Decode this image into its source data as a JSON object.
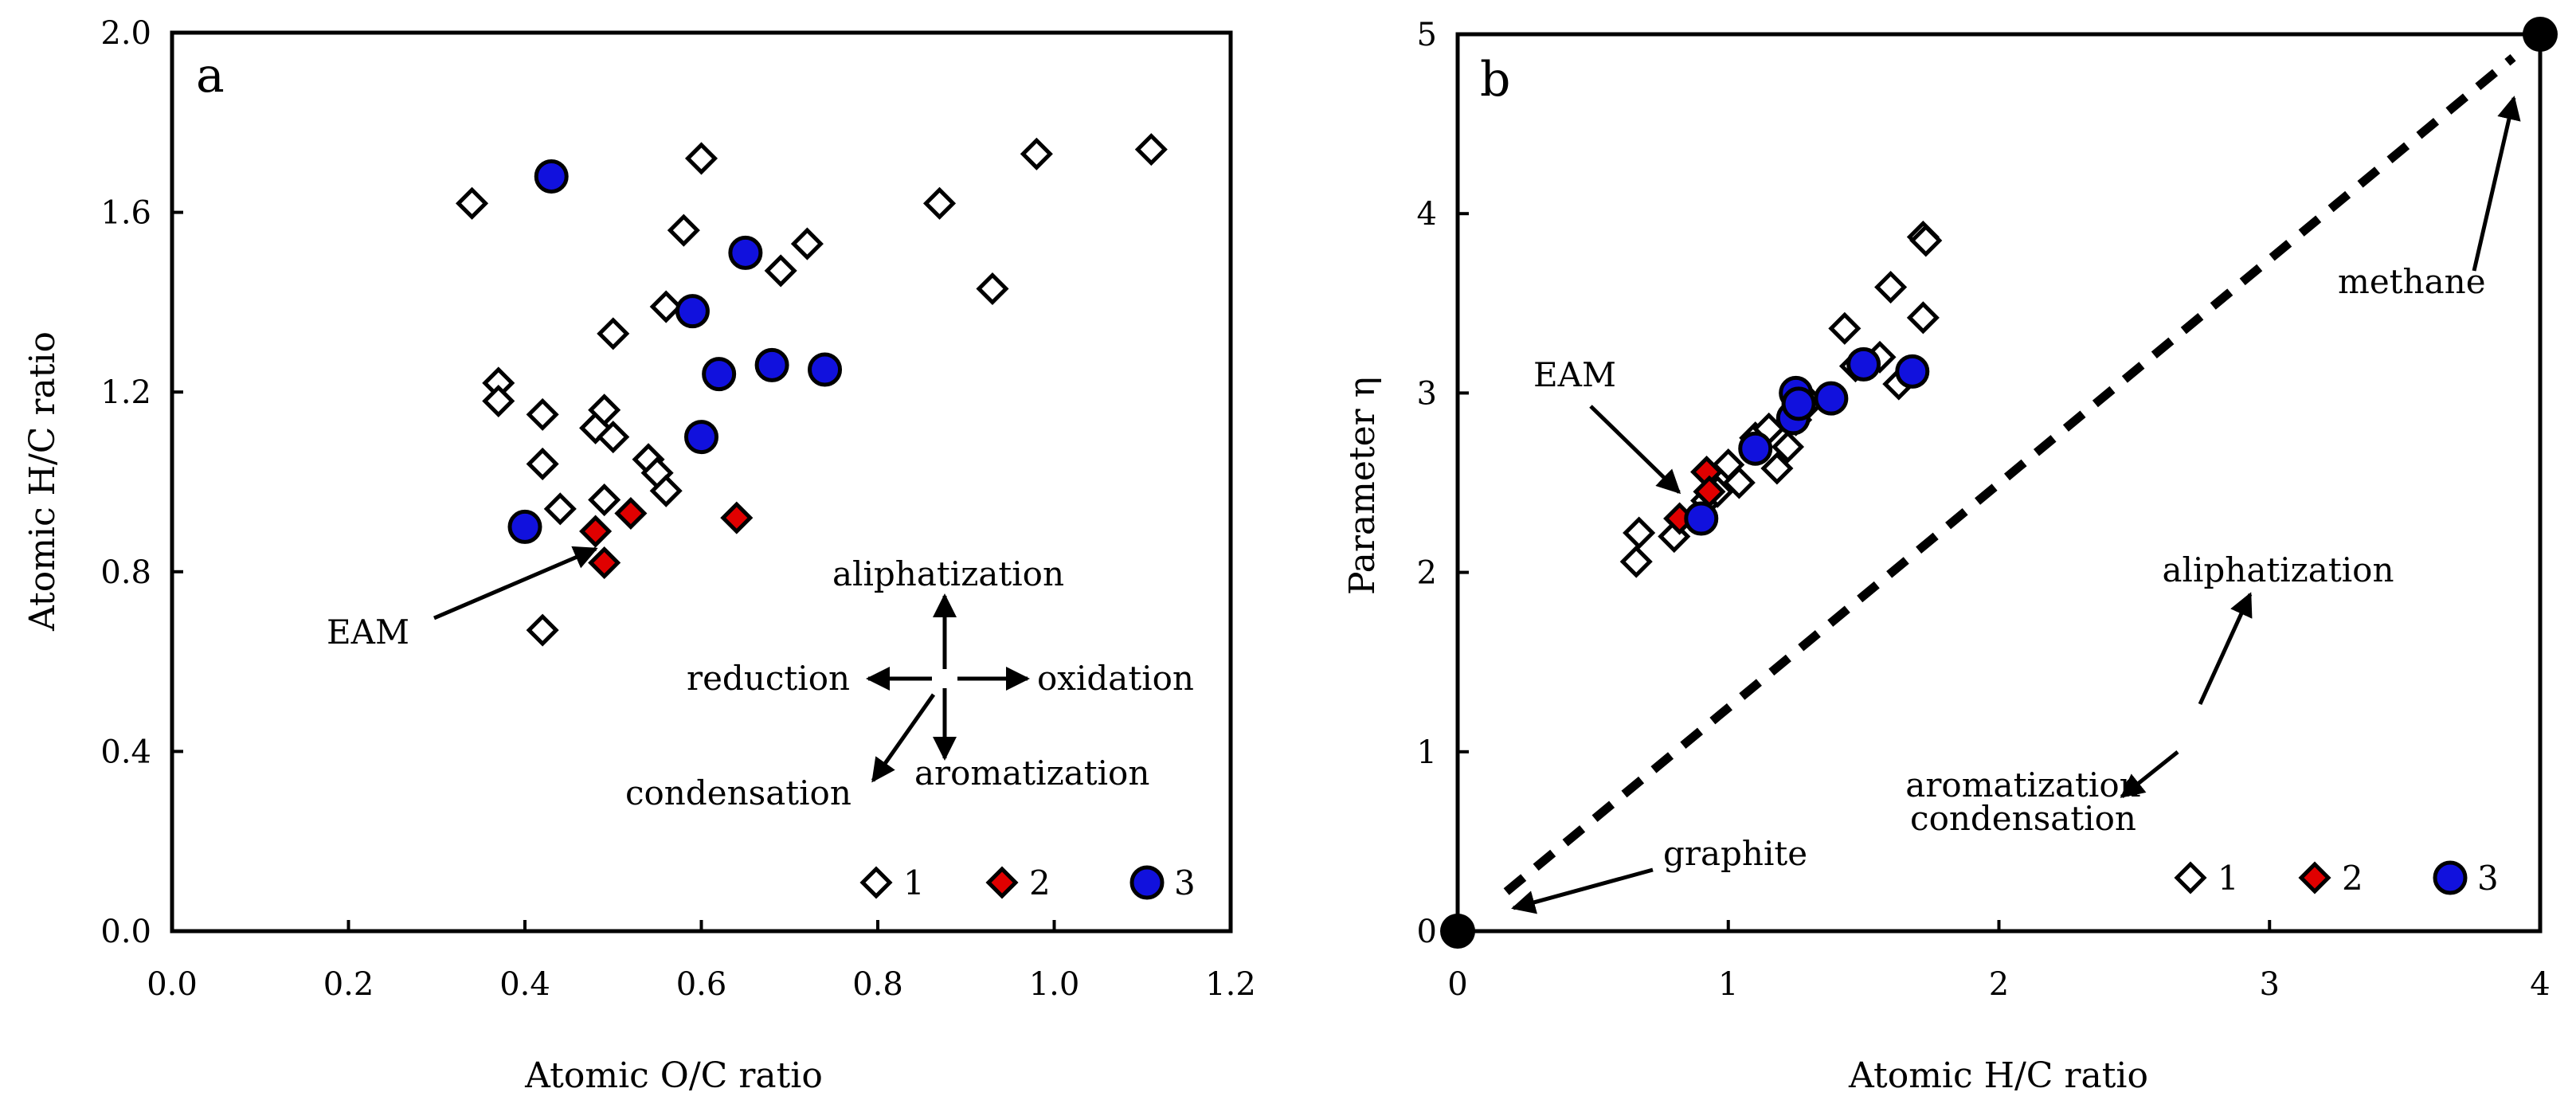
{
  "chart_data": [
    {
      "type": "scatter",
      "panel_label": "a",
      "xlabel": "Atomic O/C ratio",
      "ylabel": "Atomic H/C ratio",
      "xlim": [
        0.0,
        1.2
      ],
      "ylim": [
        0.0,
        2.0
      ],
      "xticks": [
        "0.0",
        "0.2",
        "0.4",
        "0.6",
        "0.8",
        "1.0",
        "1.2"
      ],
      "yticks": [
        "0.0",
        "0.4",
        "0.8",
        "1.2",
        "1.6",
        "2.0"
      ],
      "legend": {
        "position": "bottom-right",
        "entries": [
          "1",
          "2",
          "3"
        ]
      },
      "series": [
        {
          "name": "1",
          "marker": "diamond-open",
          "points": [
            [
              0.34,
              1.62
            ],
            [
              0.37,
              1.22
            ],
            [
              0.37,
              1.18
            ],
            [
              0.42,
              1.15
            ],
            [
              0.42,
              1.04
            ],
            [
              0.44,
              0.94
            ],
            [
              0.42,
              0.67
            ],
            [
              0.48,
              1.12
            ],
            [
              0.49,
              1.16
            ],
            [
              0.5,
              1.1
            ],
            [
              0.49,
              0.96
            ],
            [
              0.5,
              1.33
            ],
            [
              0.54,
              1.05
            ],
            [
              0.55,
              1.02
            ],
            [
              0.56,
              0.98
            ],
            [
              0.56,
              1.39
            ],
            [
              0.58,
              1.56
            ],
            [
              0.6,
              1.72
            ],
            [
              0.69,
              1.47
            ],
            [
              0.72,
              1.53
            ],
            [
              0.87,
              1.62
            ],
            [
              0.93,
              1.43
            ],
            [
              0.98,
              1.73
            ],
            [
              1.11,
              1.74
            ]
          ]
        },
        {
          "name": "2",
          "marker": "diamond-red",
          "points": [
            [
              0.48,
              0.89
            ],
            [
              0.49,
              0.82
            ],
            [
              0.52,
              0.93
            ],
            [
              0.64,
              0.92
            ]
          ]
        },
        {
          "name": "3",
          "marker": "circle-blue",
          "points": [
            [
              0.4,
              0.9
            ],
            [
              0.43,
              1.68
            ],
            [
              0.59,
              1.38
            ],
            [
              0.6,
              1.1
            ],
            [
              0.62,
              1.24
            ],
            [
              0.65,
              1.51
            ],
            [
              0.68,
              1.26
            ],
            [
              0.74,
              1.25
            ]
          ]
        }
      ],
      "annotations": {
        "eam": "EAM",
        "aliphatization": "aliphatization",
        "reduction": "reduction",
        "oxidation": "oxidation",
        "aromatization": "aromatization",
        "condensation": "condensation"
      }
    },
    {
      "type": "scatter",
      "panel_label": "b",
      "xlabel": "Atomic H/C ratio",
      "ylabel": "Parameter η",
      "xlim": [
        0,
        4
      ],
      "ylim": [
        0,
        5
      ],
      "xticks": [
        "0",
        "1",
        "2",
        "3",
        "4"
      ],
      "yticks": [
        "0",
        "1",
        "2",
        "3",
        "4",
        "5"
      ],
      "legend": {
        "position": "bottom-right",
        "entries": [
          "1",
          "2",
          "3"
        ]
      },
      "series": [
        {
          "name": "1",
          "marker": "diamond-open",
          "points": [
            [
              0.66,
              2.06
            ],
            [
              0.67,
              2.22
            ],
            [
              0.8,
              2.2
            ],
            [
              0.92,
              2.4
            ],
            [
              0.96,
              2.45
            ],
            [
              1.0,
              2.6
            ],
            [
              1.04,
              2.5
            ],
            [
              1.1,
              2.75
            ],
            [
              1.15,
              2.8
            ],
            [
              1.18,
              2.58
            ],
            [
              1.22,
              2.7
            ],
            [
              1.25,
              2.85
            ],
            [
              1.3,
              2.95
            ],
            [
              1.43,
              3.36
            ],
            [
              1.47,
              3.15
            ],
            [
              1.56,
              3.2
            ],
            [
              1.6,
              3.59
            ],
            [
              1.63,
              3.05
            ],
            [
              1.72,
              3.42
            ],
            [
              1.72,
              3.87
            ],
            [
              1.73,
              3.85
            ]
          ]
        },
        {
          "name": "2",
          "marker": "diamond-red",
          "points": [
            [
              0.82,
              2.3
            ],
            [
              0.92,
              2.56
            ],
            [
              0.93,
              2.45
            ]
          ]
        },
        {
          "name": "3",
          "marker": "circle-blue",
          "points": [
            [
              0.9,
              2.3
            ],
            [
              1.1,
              2.69
            ],
            [
              1.24,
              2.86
            ],
            [
              1.25,
              3.0
            ],
            [
              1.26,
              2.94
            ],
            [
              1.38,
              2.97
            ],
            [
              1.5,
              3.16
            ],
            [
              1.68,
              3.12
            ]
          ]
        }
      ],
      "reference_points": [
        [
          0,
          0
        ],
        [
          4,
          5
        ]
      ],
      "dashed_line": [
        [
          0.18,
          0.22
        ],
        [
          3.9,
          4.87
        ]
      ],
      "annotations": {
        "methane": "methane",
        "graphite": "graphite",
        "eam": "EAM",
        "aliphatization": "aliphatization",
        "aromatization": "aromatization",
        "condensation": "condensation"
      }
    }
  ]
}
